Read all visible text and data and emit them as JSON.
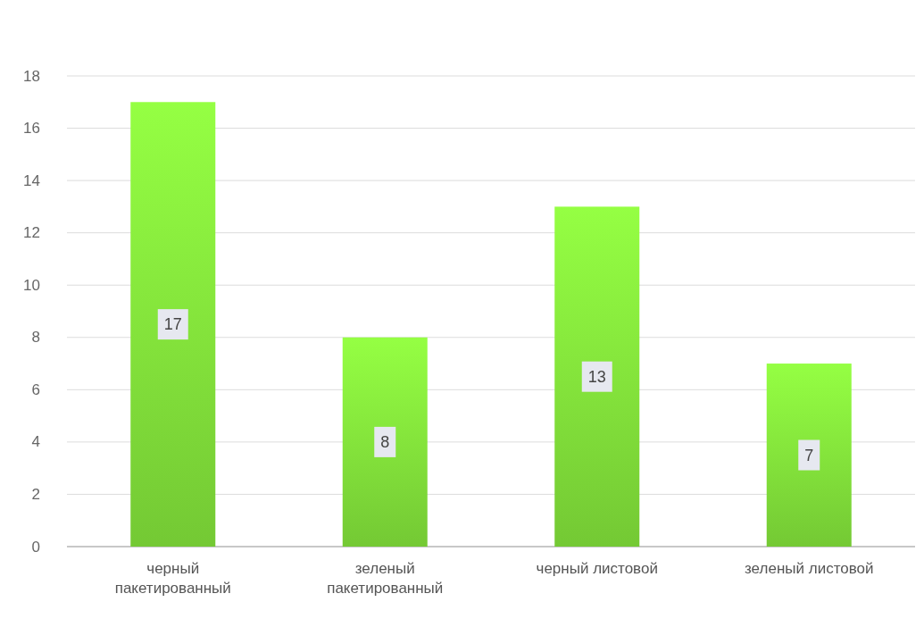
{
  "chart_data": {
    "type": "bar",
    "categories": [
      "черный пакетированный",
      "зеленый пакетированный",
      "черный листовой",
      "зеленый листовой"
    ],
    "values": [
      17,
      8,
      13,
      7
    ],
    "color": "#74c934",
    "ylim": [
      0,
      18
    ],
    "yticks": [
      0,
      2,
      4,
      6,
      8,
      10,
      12,
      14,
      16,
      18
    ],
    "grid": "y",
    "data_labels": true
  }
}
